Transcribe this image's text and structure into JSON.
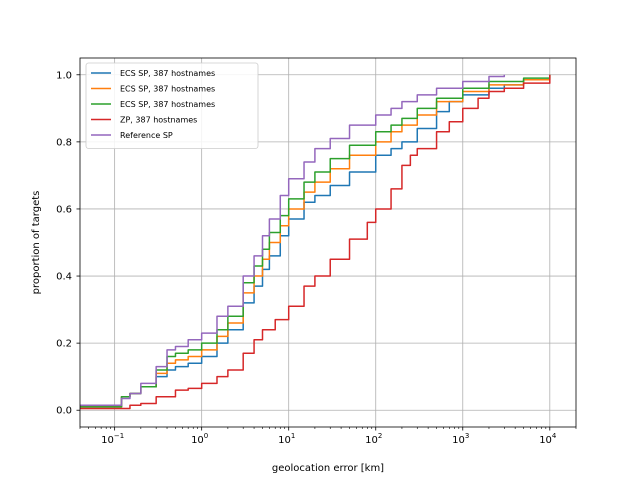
{
  "chart_data": {
    "type": "line",
    "title": "",
    "xlabel": "geolocation error [km]",
    "ylabel": "proportion of targets",
    "xscale": "log",
    "xlim": [
      0.04,
      20000
    ],
    "ylim": [
      -0.05,
      1.05
    ],
    "grid": true,
    "legend_position": "top-left",
    "x_ticks": [
      {
        "value": 0.1,
        "base": "10",
        "exp": "−1"
      },
      {
        "value": 1,
        "base": "10",
        "exp": "0"
      },
      {
        "value": 10,
        "base": "10",
        "exp": "1"
      },
      {
        "value": 100,
        "base": "10",
        "exp": "2"
      },
      {
        "value": 1000,
        "base": "10",
        "exp": "3"
      },
      {
        "value": 10000,
        "base": "10",
        "exp": "4"
      }
    ],
    "y_ticks": [
      {
        "value": 0.0,
        "label": "0.0"
      },
      {
        "value": 0.2,
        "label": "0.2"
      },
      {
        "value": 0.4,
        "label": "0.4"
      },
      {
        "value": 0.6,
        "label": "0.6"
      },
      {
        "value": 0.8,
        "label": "0.8"
      },
      {
        "value": 1.0,
        "label": "1.0"
      }
    ],
    "series": [
      {
        "name": "ECS SP, 387 hostnames",
        "color": "#1f77b4",
        "points": [
          [
            0.04,
            0.01
          ],
          [
            0.1,
            0.01
          ],
          [
            0.12,
            0.04
          ],
          [
            0.15,
            0.05
          ],
          [
            0.2,
            0.07
          ],
          [
            0.3,
            0.1
          ],
          [
            0.4,
            0.12
          ],
          [
            0.5,
            0.13
          ],
          [
            0.7,
            0.14
          ],
          [
            1,
            0.16
          ],
          [
            1.5,
            0.2
          ],
          [
            2,
            0.24
          ],
          [
            3,
            0.32
          ],
          [
            4,
            0.37
          ],
          [
            5,
            0.42
          ],
          [
            6,
            0.46
          ],
          [
            8,
            0.52
          ],
          [
            10,
            0.57
          ],
          [
            15,
            0.62
          ],
          [
            20,
            0.64
          ],
          [
            30,
            0.67
          ],
          [
            50,
            0.71
          ],
          [
            100,
            0.76
          ],
          [
            150,
            0.78
          ],
          [
            200,
            0.8
          ],
          [
            300,
            0.84
          ],
          [
            500,
            0.89
          ],
          [
            700,
            0.92
          ],
          [
            1000,
            0.94
          ],
          [
            2000,
            0.96
          ],
          [
            3000,
            0.97
          ],
          [
            5000,
            0.985
          ],
          [
            10000,
            1.0
          ]
        ]
      },
      {
        "name": "ECS SP, 387 hostnames",
        "color": "#ff7f0e",
        "points": [
          [
            0.04,
            0.01
          ],
          [
            0.1,
            0.01
          ],
          [
            0.12,
            0.04
          ],
          [
            0.15,
            0.05
          ],
          [
            0.2,
            0.07
          ],
          [
            0.3,
            0.11
          ],
          [
            0.4,
            0.14
          ],
          [
            0.5,
            0.15
          ],
          [
            0.7,
            0.16
          ],
          [
            1,
            0.18
          ],
          [
            1.5,
            0.22
          ],
          [
            2,
            0.26
          ],
          [
            3,
            0.35
          ],
          [
            4,
            0.4
          ],
          [
            5,
            0.45
          ],
          [
            6,
            0.5
          ],
          [
            8,
            0.55
          ],
          [
            10,
            0.6
          ],
          [
            15,
            0.65
          ],
          [
            20,
            0.68
          ],
          [
            30,
            0.72
          ],
          [
            50,
            0.76
          ],
          [
            100,
            0.8
          ],
          [
            150,
            0.83
          ],
          [
            200,
            0.85
          ],
          [
            300,
            0.88
          ],
          [
            500,
            0.92
          ],
          [
            1000,
            0.95
          ],
          [
            2000,
            0.97
          ],
          [
            5000,
            0.985
          ],
          [
            10000,
            1.0
          ]
        ]
      },
      {
        "name": "ECS SP, 387 hostnames",
        "color": "#2ca02c",
        "points": [
          [
            0.04,
            0.01
          ],
          [
            0.1,
            0.01
          ],
          [
            0.12,
            0.04
          ],
          [
            0.15,
            0.05
          ],
          [
            0.2,
            0.07
          ],
          [
            0.3,
            0.12
          ],
          [
            0.4,
            0.16
          ],
          [
            0.5,
            0.17
          ],
          [
            0.7,
            0.18
          ],
          [
            1,
            0.2
          ],
          [
            1.5,
            0.24
          ],
          [
            2,
            0.28
          ],
          [
            3,
            0.38
          ],
          [
            4,
            0.43
          ],
          [
            5,
            0.48
          ],
          [
            6,
            0.53
          ],
          [
            8,
            0.58
          ],
          [
            10,
            0.63
          ],
          [
            15,
            0.68
          ],
          [
            20,
            0.71
          ],
          [
            30,
            0.75
          ],
          [
            50,
            0.79
          ],
          [
            100,
            0.83
          ],
          [
            150,
            0.85
          ],
          [
            200,
            0.87
          ],
          [
            300,
            0.9
          ],
          [
            500,
            0.93
          ],
          [
            1000,
            0.96
          ],
          [
            2000,
            0.98
          ],
          [
            5000,
            0.99
          ],
          [
            10000,
            1.0
          ]
        ]
      },
      {
        "name": "ZP, 387 hostnames",
        "color": "#d62728",
        "points": [
          [
            0.04,
            0.005
          ],
          [
            0.1,
            0.005
          ],
          [
            0.15,
            0.015
          ],
          [
            0.2,
            0.02
          ],
          [
            0.3,
            0.04
          ],
          [
            0.5,
            0.06
          ],
          [
            0.7,
            0.065
          ],
          [
            1,
            0.08
          ],
          [
            1.5,
            0.1
          ],
          [
            2,
            0.12
          ],
          [
            3,
            0.17
          ],
          [
            4,
            0.21
          ],
          [
            5,
            0.24
          ],
          [
            7,
            0.27
          ],
          [
            10,
            0.31
          ],
          [
            15,
            0.37
          ],
          [
            20,
            0.4
          ],
          [
            30,
            0.45
          ],
          [
            50,
            0.51
          ],
          [
            80,
            0.56
          ],
          [
            100,
            0.6
          ],
          [
            150,
            0.66
          ],
          [
            200,
            0.73
          ],
          [
            250,
            0.76
          ],
          [
            300,
            0.78
          ],
          [
            500,
            0.83
          ],
          [
            700,
            0.86
          ],
          [
            1000,
            0.9
          ],
          [
            1500,
            0.93
          ],
          [
            2000,
            0.95
          ],
          [
            3000,
            0.96
          ],
          [
            5000,
            0.975
          ],
          [
            10000,
            1.0
          ]
        ]
      },
      {
        "name": "Reference SP",
        "color": "#9467bd",
        "points": [
          [
            0.04,
            0.015
          ],
          [
            0.1,
            0.015
          ],
          [
            0.12,
            0.035
          ],
          [
            0.15,
            0.05
          ],
          [
            0.2,
            0.08
          ],
          [
            0.3,
            0.13
          ],
          [
            0.4,
            0.18
          ],
          [
            0.5,
            0.19
          ],
          [
            0.7,
            0.21
          ],
          [
            1,
            0.23
          ],
          [
            1.5,
            0.28
          ],
          [
            2,
            0.31
          ],
          [
            3,
            0.4
          ],
          [
            4,
            0.46
          ],
          [
            5,
            0.52
          ],
          [
            6,
            0.57
          ],
          [
            8,
            0.64
          ],
          [
            10,
            0.69
          ],
          [
            15,
            0.74
          ],
          [
            20,
            0.78
          ],
          [
            30,
            0.81
          ],
          [
            50,
            0.85
          ],
          [
            100,
            0.88
          ],
          [
            150,
            0.9
          ],
          [
            200,
            0.92
          ],
          [
            300,
            0.94
          ],
          [
            500,
            0.96
          ],
          [
            1000,
            0.98
          ],
          [
            2000,
            0.995
          ],
          [
            3000,
            1.0
          ]
        ]
      }
    ]
  }
}
